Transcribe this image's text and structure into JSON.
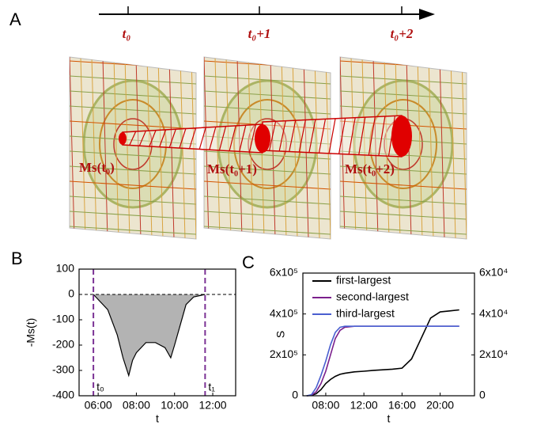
{
  "diagram": {
    "panel_label": "A",
    "timeline_labels": [
      "t₀",
      "t₀+1",
      "t₀+2"
    ],
    "state_labels": [
      "Ms(t₀)",
      "Ms(t₀+1)",
      "Ms(t₀+2)"
    ]
  },
  "chart_data": [
    {
      "type": "area",
      "panel_label": "B",
      "xlabel": "t",
      "ylabel": "-Ms(t)",
      "x": [
        5.75,
        6.0,
        6.5,
        7.0,
        7.3,
        7.6,
        7.8,
        8.0,
        8.5,
        9.0,
        9.5,
        9.8,
        10.0,
        10.3,
        10.6,
        11.0,
        11.6
      ],
      "values": [
        0,
        -20,
        -60,
        -160,
        -250,
        -320,
        -260,
        -230,
        -190,
        -190,
        -210,
        -250,
        -200,
        -120,
        -40,
        -10,
        0
      ],
      "color": "#b3b3b3",
      "edge_color": "#000000",
      "xlim": [
        5,
        13.2
      ],
      "ylim": [
        -400,
        100
      ],
      "xticks": [
        {
          "value": 6,
          "label": "06:00"
        },
        {
          "value": 8,
          "label": "08:00"
        },
        {
          "value": 10,
          "label": "10:00"
        },
        {
          "value": 12,
          "label": "12:00"
        }
      ],
      "yticks": [
        -400,
        -300,
        -200,
        -100,
        0,
        100
      ],
      "hline": 0,
      "annotations": [
        {
          "x": 5.75,
          "label": "t₀"
        },
        {
          "x": 11.6,
          "label": "t₁"
        }
      ],
      "annotation_color": "#7b3294"
    },
    {
      "type": "line",
      "panel_label": "C",
      "xlabel": "t",
      "ylabel": "S",
      "x": [
        6,
        6.5,
        7,
        7.5,
        8,
        8.5,
        9,
        9.5,
        10,
        11,
        12,
        13,
        14,
        15,
        16,
        17,
        18,
        19,
        20,
        21,
        22
      ],
      "series": [
        {
          "name": "first-largest",
          "color": "#000000",
          "values": [
            0,
            2000,
            10000,
            30000,
            60000,
            80000,
            95000,
            105000,
            110000,
            117000,
            120000,
            124000,
            127000,
            130000,
            135000,
            180000,
            280000,
            380000,
            410000,
            415000,
            420000
          ]
        },
        {
          "name": "second-largest",
          "color": "#7b1f8c",
          "axis": "y2",
          "values": [
            0,
            200,
            2000,
            6000,
            12000,
            20000,
            28000,
            32000,
            33500,
            34000,
            34000,
            34000,
            34000,
            34000,
            34000,
            34000,
            34000,
            34000,
            34000,
            34000,
            34000
          ]
        },
        {
          "name": "third-largest",
          "color": "#4a5fd0",
          "axis": "y2",
          "values": [
            0,
            500,
            4000,
            10000,
            17000,
            25000,
            31000,
            33500,
            34000,
            34000,
            34000,
            34000,
            34000,
            34000,
            34000,
            34000,
            34000,
            34000,
            34000,
            34000,
            34000
          ]
        }
      ],
      "xlim": [
        5.6,
        23.6
      ],
      "ylim": [
        0,
        600000
      ],
      "y2lim": [
        0,
        60000
      ],
      "xticks": [
        {
          "value": 8,
          "label": "08:00"
        },
        {
          "value": 12,
          "label": "12:00"
        },
        {
          "value": 16,
          "label": "16:00"
        },
        {
          "value": 20,
          "label": "20:00"
        }
      ],
      "yticks": [
        0,
        {
          "value": 200000,
          "label": "2x10⁵"
        },
        {
          "value": 400000,
          "label": "4x10⁵"
        },
        {
          "value": 600000,
          "label": "6x10⁵"
        }
      ],
      "y2ticks": [
        0,
        {
          "value": 20000,
          "label": "2x10⁴"
        },
        {
          "value": 40000,
          "label": "4x10⁴"
        },
        {
          "value": 60000,
          "label": "6x10⁴"
        }
      ],
      "legend": "upper left"
    }
  ]
}
